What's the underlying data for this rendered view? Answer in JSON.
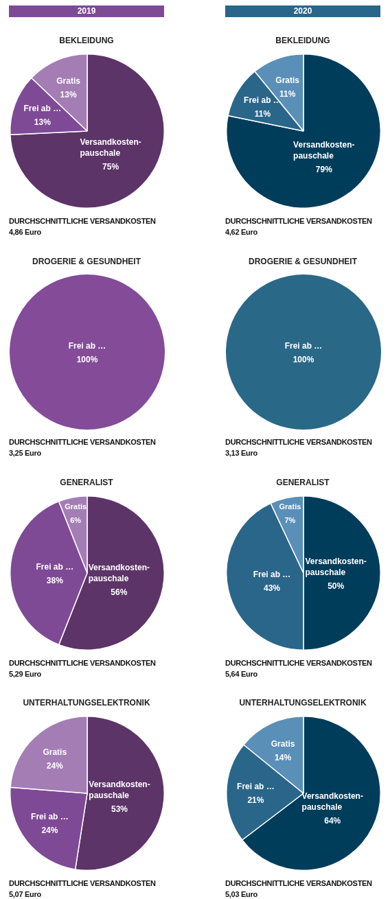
{
  "chart_data": [
    {
      "type": "pie",
      "title": "2019",
      "subtitle": "BEKLEIDUNG",
      "categories": [
        "Versandkosten-pauschale",
        "Frei ab …",
        "Gratis"
      ],
      "values": [
        75,
        13,
        13
      ],
      "value_labels": [
        "75%",
        "13%",
        "13%"
      ],
      "colors": [
        "#5c3468",
        "#7e4a95",
        "#a47db5"
      ],
      "legend": false,
      "annotations": [
        "DURCHSCHNITTLICHE VERSANDKOSTEN",
        "4,86 Euro"
      ]
    },
    {
      "type": "pie",
      "title": "2020",
      "subtitle": "BEKLEIDUNG",
      "categories": [
        "Versandkosten-pauschale",
        "Frei ab …",
        "Gratis"
      ],
      "values": [
        79,
        11,
        11
      ],
      "value_labels": [
        "79%",
        "11%",
        "11%"
      ],
      "colors": [
        "#003d5b",
        "#2a6689",
        "#5a8fb8"
      ],
      "legend": false,
      "annotations": [
        "DURCHSCHNITTLICHE VERSANDKOSTEN",
        "4,62 Euro"
      ]
    },
    {
      "type": "pie",
      "title": "DROGERIE & GESUNDHEIT",
      "categories": [
        "Frei ab …"
      ],
      "values": [
        100
      ],
      "value_labels": [
        "100%"
      ],
      "colors": [
        "#844b99"
      ],
      "legend": false,
      "annotations": [
        "DURCHSCHNITTLICHE VERSANDKOSTEN",
        "3,25 Euro"
      ]
    },
    {
      "type": "pie",
      "title": "DROGERIE & GESUNDHEIT",
      "categories": [
        "Frei ab …"
      ],
      "values": [
        100
      ],
      "value_labels": [
        "100%"
      ],
      "colors": [
        "#2a6888"
      ],
      "legend": false,
      "annotations": [
        "DURCHSCHNITTLICHE VERSANDKOSTEN",
        "3,13 Euro"
      ]
    },
    {
      "type": "pie",
      "title": "GENERALIST",
      "categories": [
        "Versandkosten-pauschale",
        "Frei ab …",
        "Gratis"
      ],
      "values": [
        56,
        38,
        6
      ],
      "value_labels": [
        "56%",
        "38%",
        "6%"
      ],
      "colors": [
        "#5c3468",
        "#7e4a95",
        "#a47db5"
      ],
      "legend": false,
      "annotations": [
        "DURCHSCHNITTLICHE VERSANDKOSTEN",
        "5,29 Euro"
      ]
    },
    {
      "type": "pie",
      "title": "GENERALIST",
      "categories": [
        "Versandkosten-pauschale",
        "Frei ab …",
        "Gratis"
      ],
      "values": [
        50,
        43,
        7
      ],
      "value_labels": [
        "50%",
        "43%",
        "7%"
      ],
      "colors": [
        "#003d5b",
        "#2a6689",
        "#5a8fb8"
      ],
      "legend": false,
      "annotations": [
        "DURCHSCHNITTLICHE VERSANDKOSTEN",
        "5,64 Euro"
      ]
    },
    {
      "type": "pie",
      "title": "UNTERHALTUNGSELEKTRONIK",
      "categories": [
        "Versandkosten-pauschale",
        "Frei ab …",
        "Gratis"
      ],
      "values": [
        53,
        24,
        24
      ],
      "value_labels": [
        "53%",
        "24%",
        "24%"
      ],
      "colors": [
        "#5c3468",
        "#7e4a95",
        "#a47db5"
      ],
      "legend": false,
      "annotations": [
        "DURCHSCHNITTLICHE VERSANDKOSTEN",
        "5,07 Euro"
      ]
    },
    {
      "type": "pie",
      "title": "UNTERHALTUNGSELEKTRONIK",
      "categories": [
        "Versandkosten-pauschale",
        "Frei ab …",
        "Gratis"
      ],
      "values": [
        64,
        21,
        14
      ],
      "value_labels": [
        "64%",
        "21%",
        "14%"
      ],
      "colors": [
        "#003d5b",
        "#2a6689",
        "#5a8fb8"
      ],
      "legend": false,
      "annotations": [
        "DURCHSCHNITTLICHE VERSANDKOSTEN",
        "5,03 Euro"
      ]
    }
  ]
}
